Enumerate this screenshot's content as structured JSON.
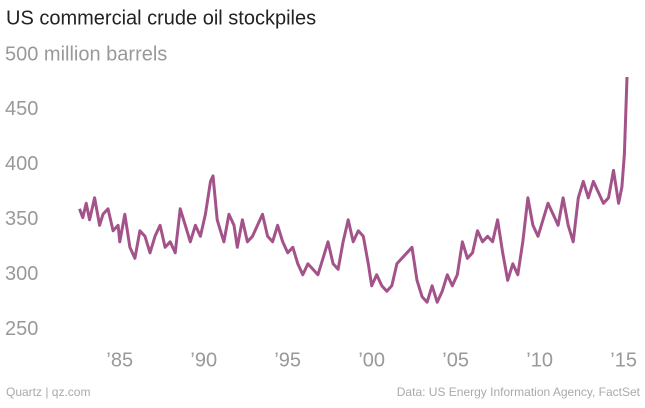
{
  "chart_data": {
    "type": "line",
    "title": "US commercial crude oil stockpiles",
    "source_left": "Quartz | qz.com",
    "source_right": "Data: US Energy Information Agency, FactSet",
    "color": "#a3538a",
    "x": [
      1982.6,
      1982.8,
      1983.0,
      1983.2,
      1983.5,
      1983.8,
      1984.0,
      1984.3,
      1984.6,
      1984.9,
      1985.0,
      1985.3,
      1985.6,
      1985.9,
      1986.2,
      1986.5,
      1986.8,
      1987.1,
      1987.4,
      1987.7,
      1988.0,
      1988.3,
      1988.6,
      1988.9,
      1989.2,
      1989.5,
      1989.8,
      1990.1,
      1990.4,
      1990.55,
      1990.8,
      1991.0,
      1991.2,
      1991.5,
      1991.8,
      1992.0,
      1992.3,
      1992.6,
      1992.9,
      1993.2,
      1993.5,
      1993.8,
      1994.1,
      1994.4,
      1994.7,
      1995.0,
      1995.3,
      1995.6,
      1995.9,
      1996.2,
      1996.5,
      1996.8,
      1997.1,
      1997.4,
      1997.7,
      1998.0,
      1998.3,
      1998.6,
      1998.9,
      1999.2,
      1999.5,
      1999.8,
      2000.0,
      2000.3,
      2000.6,
      2000.9,
      2001.2,
      2001.5,
      2001.8,
      2002.1,
      2002.4,
      2002.7,
      2003.0,
      2003.3,
      2003.6,
      2003.9,
      2004.2,
      2004.5,
      2004.8,
      2005.1,
      2005.4,
      2005.7,
      2006.0,
      2006.3,
      2006.6,
      2006.9,
      2007.2,
      2007.5,
      2007.8,
      2008.1,
      2008.4,
      2008.7,
      2009.0,
      2009.3,
      2009.6,
      2009.9,
      2010.2,
      2010.5,
      2010.8,
      2011.1,
      2011.4,
      2011.7,
      2012.0,
      2012.3,
      2012.6,
      2012.9,
      2013.2,
      2013.5,
      2013.8,
      2014.1,
      2014.4,
      2014.7,
      2014.9,
      2015.05,
      2015.2
    ],
    "values": [
      360,
      352,
      365,
      350,
      370,
      345,
      355,
      360,
      340,
      345,
      330,
      355,
      325,
      315,
      340,
      335,
      320,
      335,
      345,
      325,
      330,
      320,
      360,
      345,
      330,
      345,
      335,
      355,
      385,
      390,
      350,
      340,
      330,
      355,
      345,
      325,
      350,
      330,
      335,
      345,
      355,
      335,
      330,
      345,
      330,
      320,
      325,
      310,
      300,
      310,
      305,
      300,
      315,
      330,
      310,
      305,
      330,
      350,
      330,
      340,
      335,
      310,
      290,
      300,
      290,
      285,
      290,
      310,
      315,
      320,
      325,
      295,
      280,
      275,
      290,
      275,
      285,
      300,
      290,
      300,
      330,
      315,
      320,
      340,
      330,
      335,
      330,
      350,
      320,
      295,
      310,
      300,
      330,
      370,
      345,
      335,
      350,
      365,
      355,
      345,
      370,
      345,
      330,
      370,
      385,
      370,
      385,
      375,
      365,
      370,
      395,
      365,
      380,
      410,
      480
    ],
    "xlim": [
      1981.5,
      2015.5
    ],
    "xticks": [
      {
        "value": 1985,
        "label": "’85"
      },
      {
        "value": 1990,
        "label": "’90"
      },
      {
        "value": 1995,
        "label": "’95"
      },
      {
        "value": 2000,
        "label": "’00"
      },
      {
        "value": 2005,
        "label": "’05"
      },
      {
        "value": 2010,
        "label": "’10"
      },
      {
        "value": 2015,
        "label": "’15"
      }
    ],
    "ylim": [
      237,
      510
    ],
    "yticks": [
      250,
      300,
      350,
      400,
      450,
      {
        "value": 500,
        "label": "500 million barrels"
      }
    ]
  }
}
